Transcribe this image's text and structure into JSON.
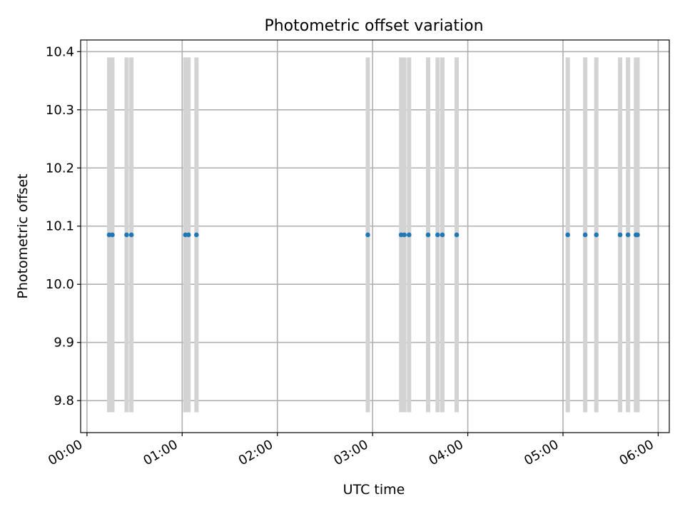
{
  "chart_data": {
    "type": "scatter",
    "title": "Photometric offset variation",
    "xlabel": "UTC time",
    "ylabel": "Photometric offset",
    "xlim": [
      "23:56",
      "06:07"
    ],
    "ylim": [
      9.745,
      10.42
    ],
    "x_ticks": [
      "00:00",
      "01:00",
      "02:00",
      "03:00",
      "04:00",
      "05:00",
      "06:00"
    ],
    "y_ticks": [
      "9.8",
      "9.9",
      "10.0",
      "10.1",
      "10.2",
      "10.3",
      "10.4"
    ],
    "grid": true,
    "points": [
      {
        "x": "00:14",
        "y": 10.085
      },
      {
        "x": "00:16",
        "y": 10.085
      },
      {
        "x": "00:25",
        "y": 10.085
      },
      {
        "x": "00:28",
        "y": 10.085
      },
      {
        "x": "01:02",
        "y": 10.085
      },
      {
        "x": "01:04",
        "y": 10.085
      },
      {
        "x": "01:09",
        "y": 10.085
      },
      {
        "x": "02:57",
        "y": 10.085
      },
      {
        "x": "03:18",
        "y": 10.085
      },
      {
        "x": "03:20",
        "y": 10.085
      },
      {
        "x": "03:23",
        "y": 10.085
      },
      {
        "x": "03:35",
        "y": 10.085
      },
      {
        "x": "03:41",
        "y": 10.085
      },
      {
        "x": "03:44",
        "y": 10.085
      },
      {
        "x": "03:53",
        "y": 10.085
      },
      {
        "x": "05:03",
        "y": 10.085
      },
      {
        "x": "05:14",
        "y": 10.085
      },
      {
        "x": "05:21",
        "y": 10.085
      },
      {
        "x": "05:36",
        "y": 10.085
      },
      {
        "x": "05:41",
        "y": 10.085
      },
      {
        "x": "05:46",
        "y": 10.085
      },
      {
        "x": "05:47",
        "y": 10.085
      }
    ],
    "bands": {
      "y_range": [
        9.78,
        10.39
      ],
      "x": [
        "00:14",
        "00:16",
        "00:25",
        "00:28",
        "01:02",
        "01:04",
        "01:09",
        "02:57",
        "03:18",
        "03:20",
        "03:23",
        "03:35",
        "03:41",
        "03:44",
        "03:53",
        "05:03",
        "05:14",
        "05:21",
        "05:36",
        "05:41",
        "05:46",
        "05:47"
      ]
    },
    "colors": {
      "points": "#1f77b4",
      "bands": "#d3d3d3",
      "grid": "#b0b0b0",
      "axes": "#000000"
    }
  }
}
